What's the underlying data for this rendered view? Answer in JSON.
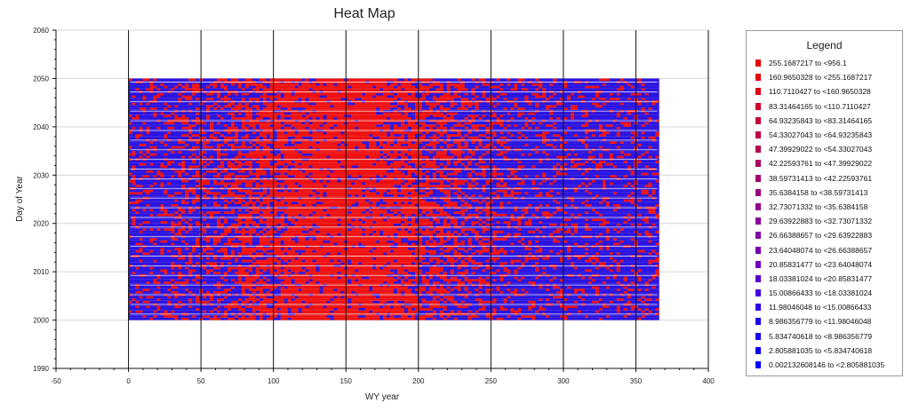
{
  "chart_data": {
    "type": "heatmap",
    "title": "Heat Map",
    "xlabel": "WY year",
    "ylabel": "Day of Year",
    "xlim": [
      -50,
      400
    ],
    "ylim": [
      1990,
      2060
    ],
    "xticks": [
      -50,
      0,
      50,
      100,
      150,
      200,
      250,
      300,
      350,
      400
    ],
    "yticks": [
      1990,
      2000,
      2010,
      2020,
      2030,
      2040,
      2050,
      2060
    ],
    "data_extent": {
      "x": [
        0,
        366
      ],
      "y": [
        2000,
        2050
      ]
    },
    "vertical_grid_lines": [
      0,
      50,
      100,
      150,
      200,
      250,
      300,
      350,
      400
    ],
    "grid": true,
    "legend_position": "right",
    "legend": {
      "title": "Legend",
      "items": [
        {
          "label": "255.1687217 to <956.1",
          "color": "#ee0000"
        },
        {
          "label": "160.9650328 to <255.1687217",
          "color": "#e5000e"
        },
        {
          "label": "110.7110427 to <160.9650328",
          "color": "#dc001c"
        },
        {
          "label": "83.31464165 to <110.7110427",
          "color": "#d3002a"
        },
        {
          "label": "64.93235843 to <83.31464165",
          "color": "#ca0038"
        },
        {
          "label": "54.33027043 to <64.93235843",
          "color": "#c10046"
        },
        {
          "label": "47.39929022 to <54.33027043",
          "color": "#b80054"
        },
        {
          "label": "42.22593761 to <47.39929022",
          "color": "#af0062"
        },
        {
          "label": "38.59731413 to <42.22593761",
          "color": "#a60070"
        },
        {
          "label": "35.6384158 to <38.59731413",
          "color": "#9d007e"
        },
        {
          "label": "32.73071332 to <35.6384158",
          "color": "#94008c"
        },
        {
          "label": "29.63922883 to <32.73071332",
          "color": "#8b009a"
        },
        {
          "label": "26.66388657 to <29.63922883",
          "color": "#8200a8"
        },
        {
          "label": "23.64048074 to <26.66388657",
          "color": "#7900b6"
        },
        {
          "label": "20.85831477 to <23.64048074",
          "color": "#7000c4"
        },
        {
          "label": "18.03381024 to <20.85831477",
          "color": "#5a00d0"
        },
        {
          "label": "15.00866433 to <18.03381024",
          "color": "#4400dc"
        },
        {
          "label": "11.98046048 to <15.00866433",
          "color": "#2e00e6"
        },
        {
          "label": "8.986356779 to <11.98046048",
          "color": "#1e00ee"
        },
        {
          "label": "5.834740618 to <8.986356779",
          "color": "#1400f2"
        },
        {
          "label": "2.805881035 to <5.834740618",
          "color": "#0a00f6"
        },
        {
          "label": "0.002132608146 to <2.805881035",
          "color": "#0000ff"
        }
      ]
    }
  }
}
